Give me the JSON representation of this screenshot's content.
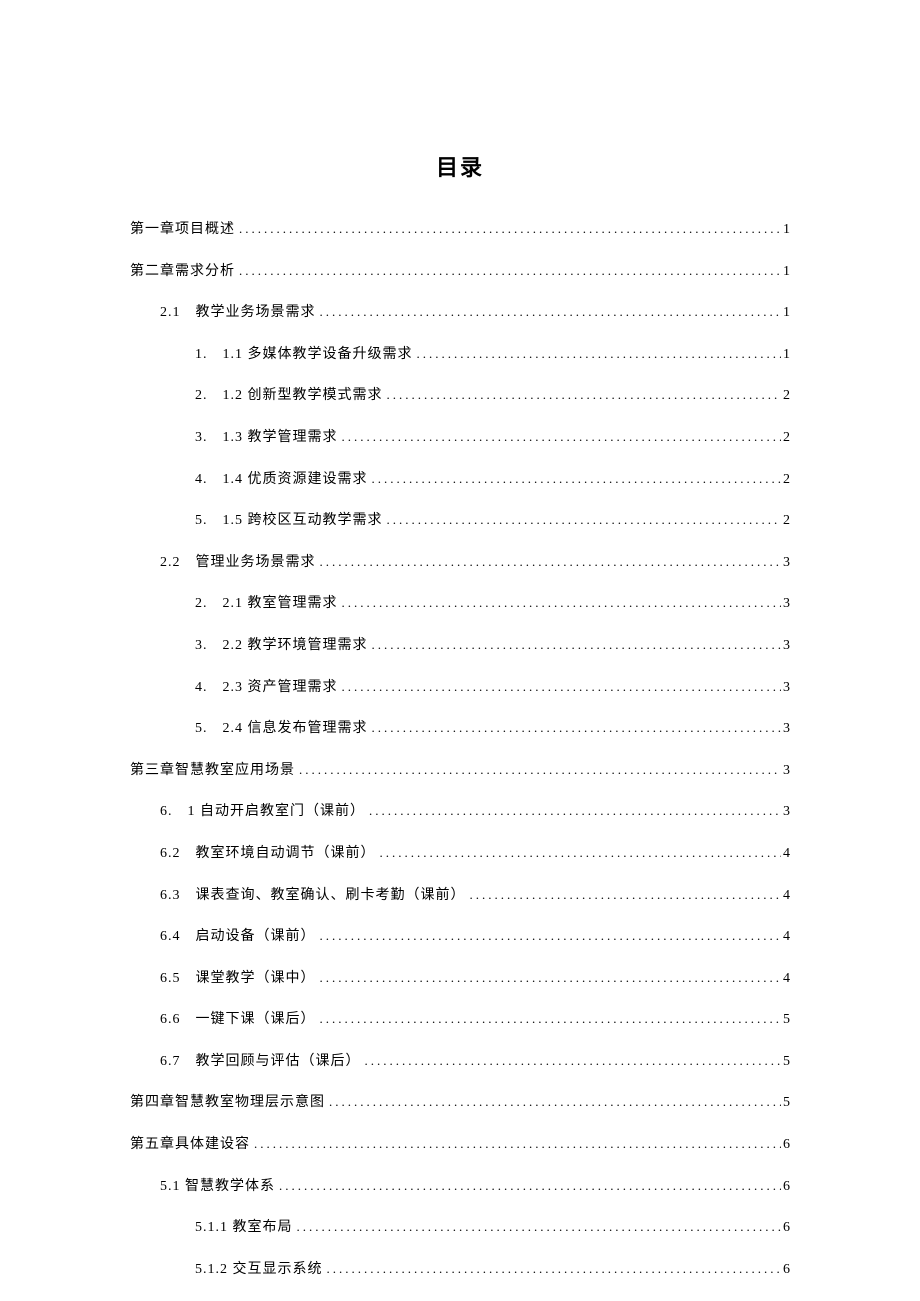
{
  "document": {
    "title": "目录",
    "title_fontsize": 22,
    "body_fontsize": 14,
    "background_color": "#ffffff",
    "text_color": "#000000",
    "entries": [
      {
        "level": 0,
        "label": "第一章项目概述",
        "page": "1"
      },
      {
        "level": 0,
        "label": "第二章需求分析",
        "page": "1"
      },
      {
        "level": 1,
        "label": "2.1　教学业务场景需求",
        "page": "1"
      },
      {
        "level": 2,
        "label": "1.　1.1 多媒体教学设备升级需求",
        "page": "1"
      },
      {
        "level": 2,
        "label": "2.　1.2 创新型教学模式需求",
        "page": "2"
      },
      {
        "level": 2,
        "label": "3.　1.3 教学管理需求",
        "page": "2"
      },
      {
        "level": 2,
        "label": "4.　1.4 优质资源建设需求",
        "page": "2"
      },
      {
        "level": 2,
        "label": "5.　1.5 跨校区互动教学需求",
        "page": "2"
      },
      {
        "level": 1,
        "label": "2.2　管理业务场景需求",
        "page": "3"
      },
      {
        "level": 2,
        "label": "2.　2.1 教室管理需求",
        "page": "3"
      },
      {
        "level": 2,
        "label": "3.　2.2 教学环境管理需求",
        "page": "3"
      },
      {
        "level": 2,
        "label": "4.　2.3 资产管理需求",
        "page": "3"
      },
      {
        "level": 2,
        "label": "5.　2.4 信息发布管理需求",
        "page": "3"
      },
      {
        "level": 0,
        "label": "第三章智慧教室应用场景",
        "page": "3"
      },
      {
        "level": 1,
        "label": "6.　1 自动开启教室门（课前）",
        "page": "3"
      },
      {
        "level": 1,
        "label": "6.2　教室环境自动调节（课前）",
        "page": "4"
      },
      {
        "level": 1,
        "label": "6.3　课表查询、教室确认、刷卡考勤（课前）",
        "page": "4"
      },
      {
        "level": 1,
        "label": "6.4　启动设备（课前）",
        "page": "4"
      },
      {
        "level": 1,
        "label": "6.5　课堂教学（课中）",
        "page": "4"
      },
      {
        "level": 1,
        "label": "6.6　一键下课（课后）",
        "page": "5"
      },
      {
        "level": 1,
        "label": "6.7　教学回顾与评估（课后）",
        "page": "5"
      },
      {
        "level": 0,
        "label": "第四章智慧教室物理层示意图",
        "page": "5"
      },
      {
        "level": 0,
        "label": "第五章具体建设容",
        "page": "6"
      },
      {
        "level": 1,
        "label": "5.1 智慧教学体系",
        "page": "6"
      },
      {
        "level": 2,
        "label": "5.1.1 教室布局",
        "page": "6"
      },
      {
        "level": 2,
        "label": "5.1.2 交互显示系统",
        "page": "6"
      }
    ]
  }
}
